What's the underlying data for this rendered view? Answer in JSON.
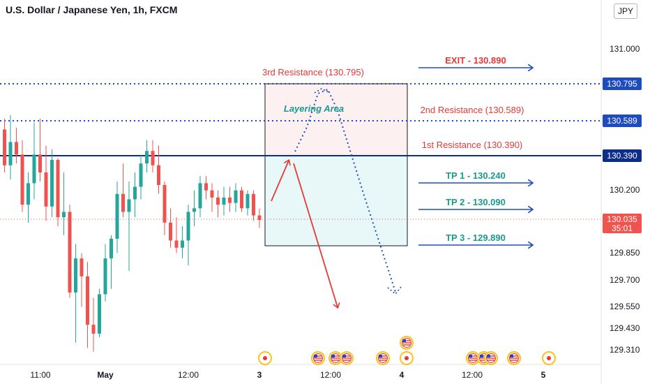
{
  "window": {
    "title": "U.S. Dollar / Japanese Yen, 1h, FXCM",
    "currency_button": "JPY"
  },
  "colors": {
    "bull": "#26a69a",
    "bear": "#ef5350",
    "blue": "#1e4bbf",
    "navy": "#0d2d8a",
    "red_text": "#e53935",
    "teal_text": "#1a9a8e",
    "resistance_box_fill": "#fdf0f0",
    "support_box_fill": "#e8f7f7"
  },
  "chart_data": {
    "type": "candlestick",
    "symbol": "U.S. Dollar / Japanese Yen, 1h, FXCM",
    "y_ticks": [
      "131.000",
      "130.200",
      "129.850",
      "129.700",
      "129.550",
      "129.430",
      "129.310"
    ],
    "x_ticks": [
      "11:00",
      "May",
      "12:00",
      "3",
      "12:00",
      "4",
      "12:00",
      "5"
    ],
    "candles": [
      [
        130.54,
        130.6,
        130.3,
        130.34
      ],
      [
        130.34,
        130.62,
        130.26,
        130.47
      ],
      [
        130.47,
        130.55,
        130.35,
        130.4
      ],
      [
        130.4,
        130.48,
        130.08,
        130.12
      ],
      [
        130.12,
        130.3,
        130.02,
        130.24
      ],
      [
        130.24,
        130.58,
        130.15,
        130.4
      ],
      [
        130.4,
        130.6,
        130.25,
        130.3
      ],
      [
        130.3,
        130.45,
        130.03,
        130.11
      ],
      [
        130.11,
        130.43,
        130.05,
        130.37
      ],
      [
        130.37,
        130.38,
        130.0,
        130.05
      ],
      [
        130.05,
        130.3,
        129.95,
        130.08
      ],
      [
        130.08,
        130.12,
        129.6,
        129.63
      ],
      [
        129.63,
        129.9,
        129.35,
        129.82
      ],
      [
        129.82,
        129.85,
        129.55,
        129.72
      ],
      [
        129.72,
        129.8,
        129.32,
        129.45
      ],
      [
        129.45,
        129.6,
        129.3,
        129.4
      ],
      [
        129.4,
        129.65,
        129.38,
        129.62
      ],
      [
        129.62,
        129.9,
        129.58,
        129.82
      ],
      [
        129.82,
        129.95,
        129.65,
        129.93
      ],
      [
        129.93,
        130.25,
        129.85,
        130.18
      ],
      [
        130.18,
        130.35,
        130.05,
        130.08
      ],
      [
        130.08,
        130.25,
        129.75,
        130.15
      ],
      [
        130.15,
        130.3,
        130.05,
        130.22
      ],
      [
        130.22,
        130.4,
        130.15,
        130.35
      ],
      [
        130.35,
        130.48,
        130.3,
        130.42
      ],
      [
        130.42,
        130.48,
        130.3,
        130.34
      ],
      [
        130.34,
        130.45,
        130.18,
        130.23
      ],
      [
        130.23,
        130.25,
        129.95,
        130.02
      ],
      [
        130.02,
        130.1,
        129.88,
        129.92
      ],
      [
        129.92,
        130.05,
        129.85,
        129.88
      ],
      [
        129.88,
        130.0,
        129.82,
        129.92
      ],
      [
        129.92,
        130.12,
        129.78,
        130.08
      ],
      [
        130.08,
        130.2,
        130.0,
        130.1
      ],
      [
        130.1,
        130.28,
        130.05,
        130.24
      ],
      [
        130.24,
        130.28,
        130.15,
        130.2
      ],
      [
        130.2,
        130.24,
        130.08,
        130.16
      ],
      [
        130.16,
        130.2,
        130.05,
        130.12
      ],
      [
        130.12,
        130.22,
        130.06,
        130.16
      ],
      [
        130.16,
        130.22,
        130.08,
        130.13
      ],
      [
        130.13,
        130.24,
        130.08,
        130.2
      ],
      [
        130.2,
        130.22,
        130.08,
        130.1
      ],
      [
        130.1,
        130.2,
        130.06,
        130.18
      ],
      [
        130.18,
        130.2,
        130.03,
        130.06
      ],
      [
        130.06,
        130.1,
        129.99,
        130.035
      ]
    ],
    "levels": {
      "r3": {
        "value": 130.795,
        "axis_label": "130.795",
        "label": "3rd Resistance (130.795)"
      },
      "r2": {
        "value": 130.589,
        "axis_label": "130.589",
        "label": "2nd Resistance (130.589)"
      },
      "r1": {
        "value": 130.39,
        "axis_label": "130.390",
        "label": "1st Resistance (130.390)"
      }
    },
    "targets": [
      {
        "label": "EXIT - 130.890",
        "value": 130.89
      },
      {
        "label": "TP 1 - 130.240",
        "value": 130.24
      },
      {
        "label": "TP 2 - 130.090",
        "value": 130.09
      },
      {
        "label": "TP 3 - 129.890",
        "value": 129.89
      }
    ],
    "current_price": {
      "value": 130.035,
      "label": "130.035",
      "countdown": "35:01"
    },
    "layering_label": "Layering Area",
    "event_markers": {
      "row_main": [
        "jp",
        "us",
        "us",
        "us",
        "us",
        "jp",
        "us",
        "us",
        "us",
        "us",
        "jp"
      ],
      "row_top": [
        "us"
      ]
    }
  }
}
